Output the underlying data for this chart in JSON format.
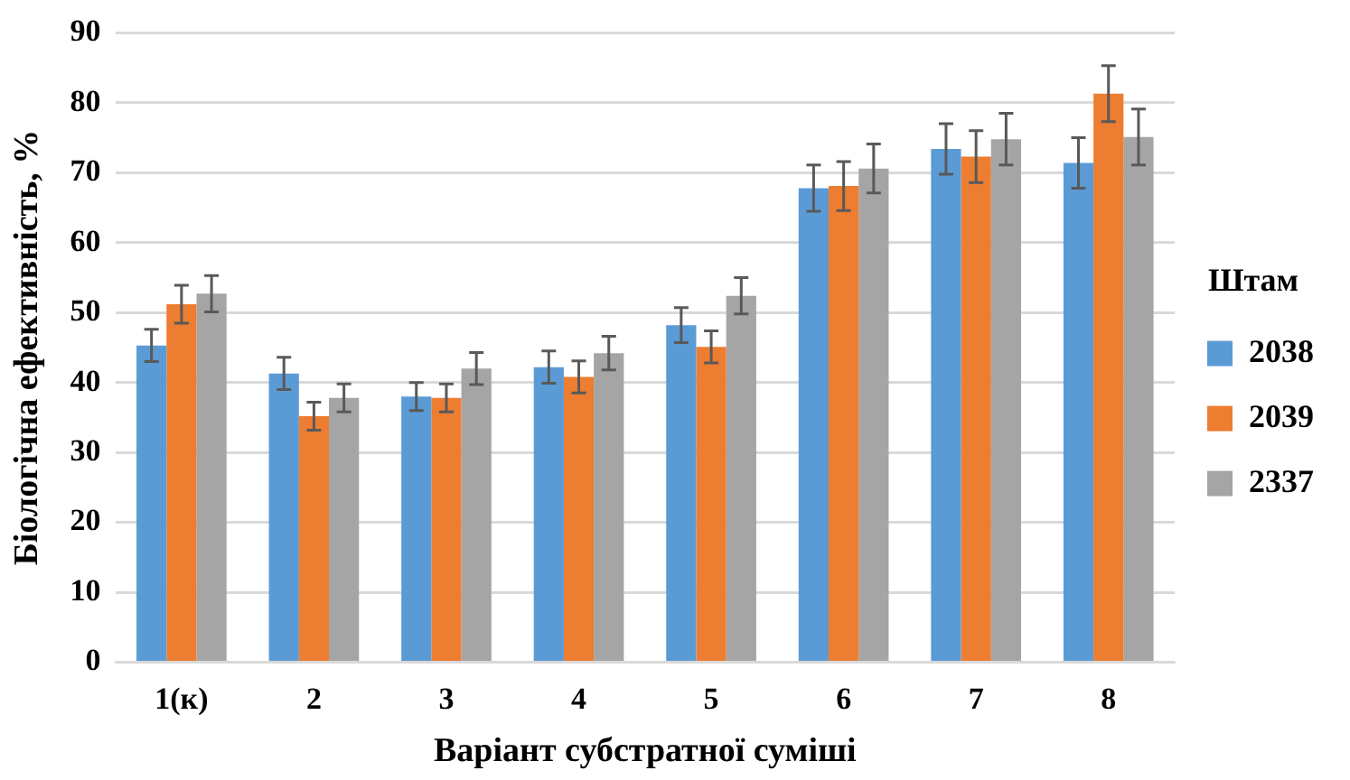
{
  "chart_data": {
    "type": "bar",
    "xlabel": "Варіант субстратної суміші",
    "ylabel": "Біологічна ефективність, %",
    "legend_title": "Штам",
    "categories": [
      "1(к)",
      "2",
      "3",
      "4",
      "5",
      "6",
      "7",
      "8"
    ],
    "series": [
      {
        "name": "2038",
        "color": "#5b9bd5",
        "values": [
          45.3,
          41.3,
          38,
          42.2,
          48.2,
          67.8,
          73.4,
          71.4
        ],
        "errors": [
          2.3,
          2.3,
          2,
          2.3,
          2.5,
          3.3,
          3.6,
          3.6
        ]
      },
      {
        "name": "2039",
        "color": "#ed7d31",
        "values": [
          51.2,
          35.2,
          37.8,
          40.8,
          45.1,
          68.1,
          72.3,
          81.3
        ],
        "errors": [
          2.7,
          2,
          2,
          2.3,
          2.3,
          3.5,
          3.7,
          4
        ]
      },
      {
        "name": "2337",
        "color": "#a5a5a5",
        "values": [
          52.7,
          37.8,
          42,
          44.2,
          52.4,
          70.6,
          74.8,
          75.1
        ],
        "errors": [
          2.6,
          2,
          2.3,
          2.4,
          2.6,
          3.5,
          3.7,
          4
        ]
      }
    ],
    "ylim": [
      0,
      90
    ],
    "yticks": [
      0,
      10,
      20,
      30,
      40,
      50,
      60,
      70,
      80,
      90
    ],
    "grid": "y",
    "legend": "right"
  }
}
